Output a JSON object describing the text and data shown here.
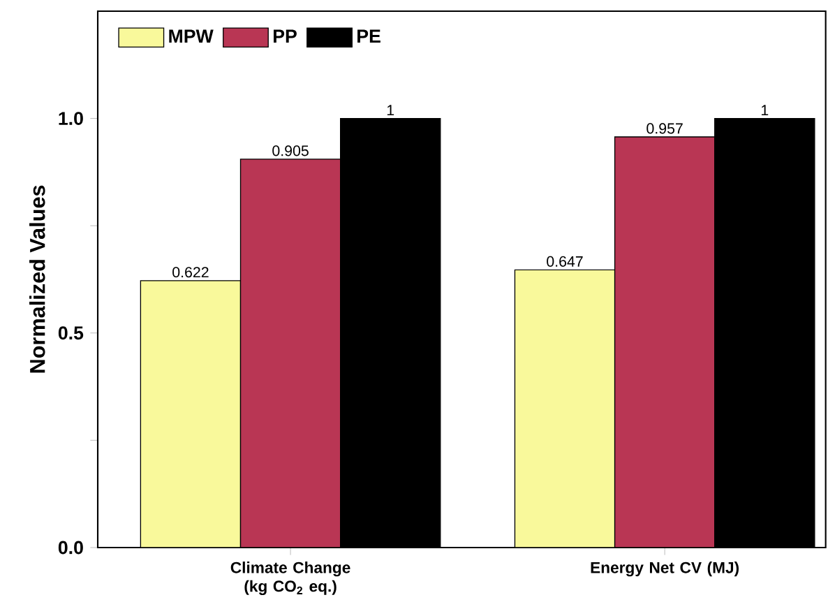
{
  "chart_data": {
    "type": "bar",
    "ylabel": "Normalized Values",
    "categories": [
      "Climate Change (kg CO$_{2}$ eq.)",
      "Energy Net CV (MJ)"
    ],
    "series": [
      {
        "name": "MPW",
        "color": "#f9f99b",
        "values": [
          0.622,
          0.647
        ]
      },
      {
        "name": "PP",
        "color": "#b93654",
        "values": [
          0.905,
          0.957
        ]
      },
      {
        "name": "PE",
        "color": "#000000",
        "values": [
          1,
          1
        ]
      }
    ],
    "ylim": [
      0,
      1.25
    ],
    "yticks": [
      {
        "value": 0,
        "label": "0.0"
      },
      {
        "value": 0.25,
        "label": null
      },
      {
        "value": 0.5,
        "label": "0.5"
      },
      {
        "value": 0.75,
        "label": null
      },
      {
        "value": 1,
        "label": "1.0"
      }
    ],
    "data_labels": true,
    "legend": "top left",
    "grid": false
  }
}
